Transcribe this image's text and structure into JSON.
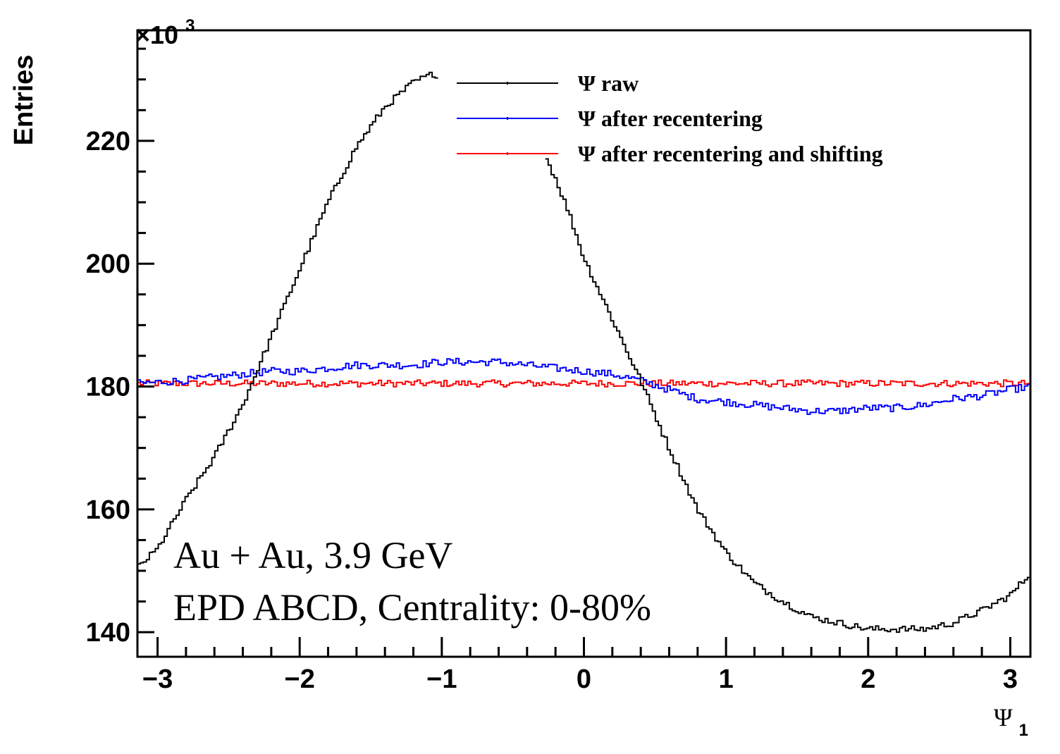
{
  "chart_data": {
    "type": "line",
    "style": "step-histogram",
    "xlabel": "Ψ",
    "xlabel_subscript": "1",
    "ylabel": "Entries",
    "y_multiplier_label": "×10",
    "y_multiplier_exponent": "3",
    "xlim": [
      -3.1416,
      3.1416
    ],
    "ylim": [
      136,
      238
    ],
    "x_ticks": [
      -3,
      -2,
      -1,
      0,
      1,
      2,
      3
    ],
    "x_tick_labels": [
      "−3",
      "−2",
      "−1",
      "0",
      "1",
      "2",
      "3"
    ],
    "y_ticks": [
      140,
      160,
      180,
      200,
      220
    ],
    "y_tick_labels": [
      "140",
      "160",
      "180",
      "200",
      "220"
    ],
    "grid": false,
    "legend_position": "top-right",
    "annotations": [
      "Au + Au, 3.9 GeV",
      "EPD ABCD, Centrality: 0-80%"
    ],
    "series": [
      {
        "name": "Ψ raw",
        "color": "#000000",
        "visible_x_ranges": [
          [
            -3.1416,
            -1.03
          ],
          [
            -0.26,
            3.1416
          ]
        ],
        "points": [
          [
            -3.14,
            150.5
          ],
          [
            -3.0,
            153.5
          ],
          [
            -2.8,
            161.5
          ],
          [
            -2.6,
            168.5
          ],
          [
            -2.4,
            177
          ],
          [
            -2.2,
            188
          ],
          [
            -2.0,
            199
          ],
          [
            -1.8,
            210
          ],
          [
            -1.6,
            219
          ],
          [
            -1.4,
            225.5
          ],
          [
            -1.2,
            229.5
          ],
          [
            -1.05,
            231
          ],
          [
            -0.3,
            219
          ],
          [
            -0.2,
            214
          ],
          [
            -0.1,
            208
          ],
          [
            0.0,
            201
          ],
          [
            0.2,
            191
          ],
          [
            0.4,
            181
          ],
          [
            0.6,
            170
          ],
          [
            0.8,
            160
          ],
          [
            1.0,
            153
          ],
          [
            1.2,
            148
          ],
          [
            1.4,
            145
          ],
          [
            1.6,
            142.5
          ],
          [
            1.8,
            141.5
          ],
          [
            2.0,
            140.5
          ],
          [
            2.2,
            140.5
          ],
          [
            2.4,
            140.5
          ],
          [
            2.6,
            141.5
          ],
          [
            2.8,
            143.5
          ],
          [
            3.0,
            146
          ],
          [
            3.14,
            149.5
          ]
        ]
      },
      {
        "name": "Ψ after recentering",
        "color": "#0000ff",
        "points": [
          [
            -3.14,
            180.5
          ],
          [
            -2.8,
            181
          ],
          [
            -2.6,
            181.5
          ],
          [
            -2.4,
            182
          ],
          [
            -2.2,
            182.5
          ],
          [
            -2.0,
            182.5
          ],
          [
            -1.8,
            183
          ],
          [
            -1.6,
            183.5
          ],
          [
            -1.4,
            183.5
          ],
          [
            -1.2,
            183.5
          ],
          [
            -1.0,
            184
          ],
          [
            -0.8,
            184
          ],
          [
            -0.6,
            184
          ],
          [
            -0.4,
            183.5
          ],
          [
            -0.2,
            183
          ],
          [
            0.0,
            182.5
          ],
          [
            0.2,
            182
          ],
          [
            0.4,
            181
          ],
          [
            0.6,
            179.5
          ],
          [
            0.8,
            178
          ],
          [
            1.0,
            177.5
          ],
          [
            1.2,
            177
          ],
          [
            1.4,
            176.5
          ],
          [
            1.6,
            176
          ],
          [
            1.8,
            176
          ],
          [
            2.0,
            176.5
          ],
          [
            2.2,
            176.5
          ],
          [
            2.4,
            177
          ],
          [
            2.6,
            178
          ],
          [
            2.8,
            178.5
          ],
          [
            3.0,
            179.5
          ],
          [
            3.14,
            180
          ]
        ]
      },
      {
        "name": "Ψ after recentering and shifting",
        "color": "#ff0000",
        "points": [
          [
            -3.14,
            180.5
          ],
          [
            -2.0,
            180.5
          ],
          [
            -1.0,
            180.5
          ],
          [
            0.0,
            180.5
          ],
          [
            1.0,
            180.5
          ],
          [
            2.0,
            180.5
          ],
          [
            3.14,
            180.5
          ]
        ]
      }
    ]
  }
}
